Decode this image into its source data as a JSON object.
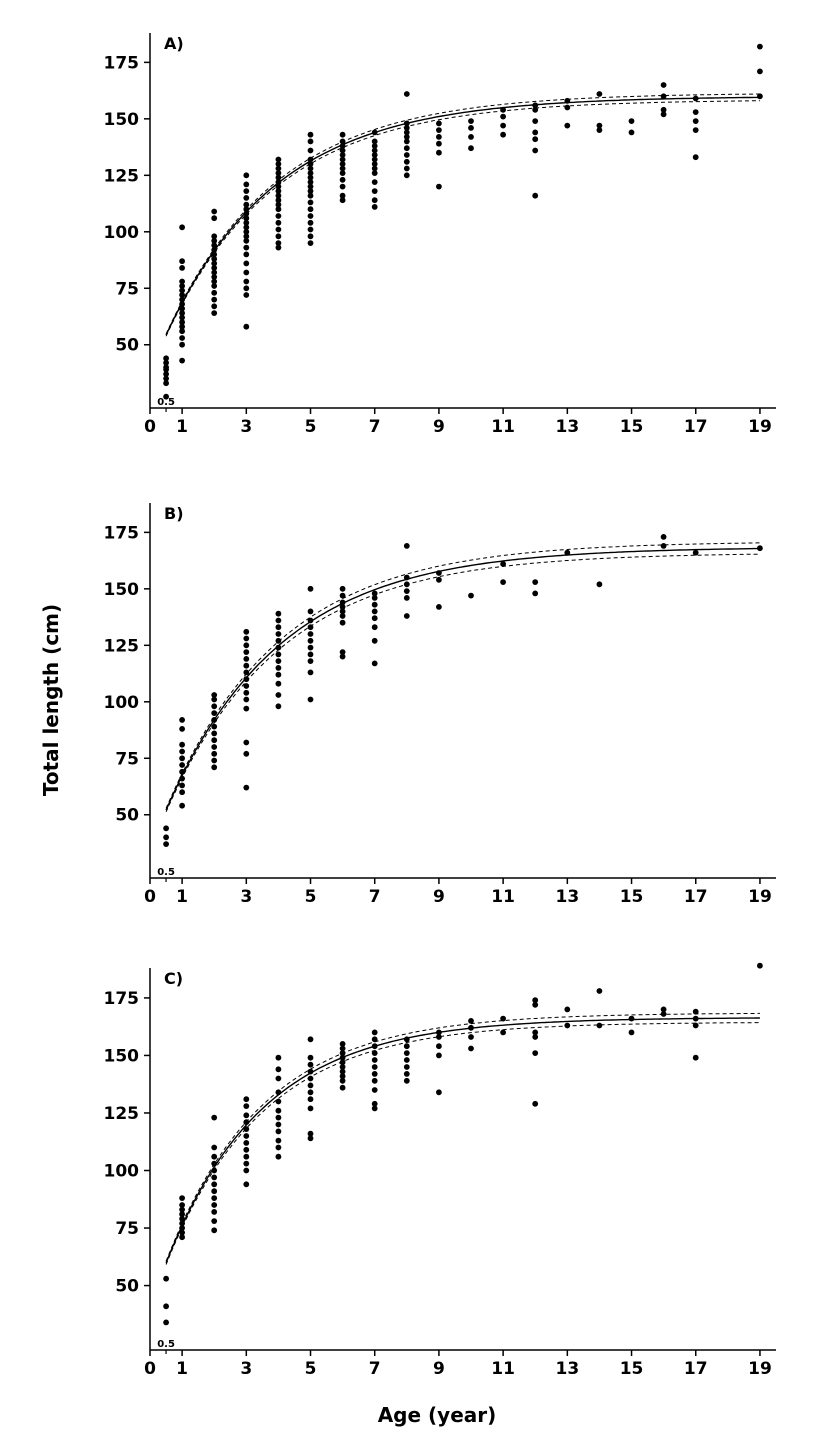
{
  "figure": {
    "ylabel": "Total length (cm)",
    "xlabel": "Age (year)"
  },
  "chart_data": [
    {
      "type": "scatter",
      "panel_label": "A)",
      "xlim": [
        0,
        19.5
      ],
      "ylim": [
        22,
        188
      ],
      "x_ticks": [
        0,
        1,
        3,
        5,
        7,
        9,
        11,
        13,
        15,
        17,
        19
      ],
      "x_minor_tick": 0.5,
      "x_minor_tick_label": "0.5",
      "y_ticks": [
        50,
        75,
        100,
        125,
        150,
        175
      ],
      "grid": false,
      "points": [
        {
          "x": 0.5,
          "y": [
            27,
            33,
            35,
            37,
            39,
            40,
            42,
            44
          ]
        },
        {
          "x": 1,
          "y": [
            43,
            50,
            53,
            56,
            58,
            60,
            62,
            64,
            66,
            68,
            70,
            72,
            74,
            76,
            78,
            84,
            87,
            102
          ]
        },
        {
          "x": 2,
          "y": [
            64,
            67,
            70,
            73,
            76,
            78,
            80,
            82,
            84,
            86,
            88,
            90,
            92,
            94,
            96,
            98,
            106,
            109
          ]
        },
        {
          "x": 3,
          "y": [
            58,
            72,
            75,
            78,
            82,
            86,
            90,
            93,
            96,
            98,
            100,
            102,
            104,
            106,
            108,
            110,
            112,
            115,
            118,
            121,
            125
          ]
        },
        {
          "x": 4,
          "y": [
            93,
            95,
            98,
            101,
            104,
            107,
            110,
            112,
            114,
            116,
            118,
            120,
            122,
            124,
            126,
            128,
            130,
            132
          ]
        },
        {
          "x": 5,
          "y": [
            95,
            98,
            101,
            104,
            107,
            110,
            113,
            116,
            118,
            120,
            122,
            124,
            126,
            128,
            130,
            132,
            136,
            140,
            143
          ]
        },
        {
          "x": 6,
          "y": [
            114,
            116,
            120,
            123,
            126,
            128,
            130,
            132,
            134,
            136,
            138,
            140,
            143
          ]
        },
        {
          "x": 7,
          "y": [
            111,
            114,
            118,
            122,
            126,
            128,
            130,
            132,
            134,
            136,
            138,
            140,
            144
          ]
        },
        {
          "x": 8,
          "y": [
            125,
            128,
            131,
            134,
            137,
            140,
            142,
            144,
            146,
            148,
            161
          ]
        },
        {
          "x": 9,
          "y": [
            120,
            135,
            139,
            142,
            145,
            148
          ]
        },
        {
          "x": 10,
          "y": [
            137,
            142,
            146,
            149
          ]
        },
        {
          "x": 11,
          "y": [
            143,
            147,
            151,
            154
          ]
        },
        {
          "x": 12,
          "y": [
            116,
            136,
            141,
            144,
            149,
            154,
            156
          ]
        },
        {
          "x": 13,
          "y": [
            147,
            155,
            158
          ]
        },
        {
          "x": 14,
          "y": [
            145,
            147,
            161
          ]
        },
        {
          "x": 15,
          "y": [
            144,
            149
          ]
        },
        {
          "x": 16,
          "y": [
            152,
            154,
            160,
            165
          ]
        },
        {
          "x": 17,
          "y": [
            133,
            145,
            149,
            153,
            159
          ]
        },
        {
          "x": 19,
          "y": [
            160,
            171,
            182
          ]
        }
      ],
      "curve": {
        "Linf": 160,
        "K": 0.29,
        "t0": -0.93
      },
      "ci_offset": 1.5
    },
    {
      "type": "scatter",
      "panel_label": "B)",
      "xlim": [
        0,
        19.5
      ],
      "ylim": [
        22,
        188
      ],
      "x_ticks": [
        0,
        1,
        3,
        5,
        7,
        9,
        11,
        13,
        15,
        17,
        19
      ],
      "x_minor_tick": 0.5,
      "x_minor_tick_label": "0.5",
      "y_ticks": [
        50,
        75,
        100,
        125,
        150,
        175
      ],
      "grid": false,
      "points": [
        {
          "x": 0.5,
          "y": [
            37,
            40,
            44
          ]
        },
        {
          "x": 1,
          "y": [
            54,
            60,
            63,
            66,
            69,
            72,
            75,
            78,
            81,
            88,
            92
          ]
        },
        {
          "x": 2,
          "y": [
            71,
            74,
            77,
            80,
            83,
            86,
            89,
            92,
            95,
            98,
            101,
            103
          ]
        },
        {
          "x": 3,
          "y": [
            62,
            77,
            82,
            97,
            101,
            104,
            107,
            110,
            113,
            116,
            119,
            122,
            125,
            128,
            131
          ]
        },
        {
          "x": 4,
          "y": [
            98,
            103,
            108,
            112,
            115,
            118,
            121,
            124,
            127,
            130,
            133,
            136,
            139
          ]
        },
        {
          "x": 5,
          "y": [
            101,
            113,
            118,
            121,
            124,
            127,
            130,
            133,
            136,
            140,
            150
          ]
        },
        {
          "x": 6,
          "y": [
            120,
            122,
            135,
            138,
            140,
            142,
            144,
            147,
            150
          ]
        },
        {
          "x": 7,
          "y": [
            117,
            127,
            133,
            137,
            140,
            143,
            146,
            148
          ]
        },
        {
          "x": 8,
          "y": [
            138,
            146,
            149,
            152,
            155,
            169
          ]
        },
        {
          "x": 9,
          "y": [
            142,
            154,
            157
          ]
        },
        {
          "x": 10,
          "y": [
            147
          ]
        },
        {
          "x": 11,
          "y": [
            153,
            161
          ]
        },
        {
          "x": 12,
          "y": [
            148,
            153
          ]
        },
        {
          "x": 13,
          "y": [
            166
          ]
        },
        {
          "x": 14,
          "y": [
            152
          ]
        },
        {
          "x": 16,
          "y": [
            169,
            173
          ]
        },
        {
          "x": 17,
          "y": [
            166
          ]
        },
        {
          "x": 19,
          "y": [
            168
          ]
        }
      ],
      "curve": {
        "Linf": 168.5,
        "K": 0.28,
        "t0": -0.82
      },
      "ci_offset": 2.5
    },
    {
      "type": "scatter",
      "panel_label": "C)",
      "xlim": [
        0,
        19.5
      ],
      "ylim": [
        22,
        188
      ],
      "x_ticks": [
        0,
        1,
        3,
        5,
        7,
        9,
        11,
        13,
        15,
        17,
        19
      ],
      "x_minor_tick": 0.5,
      "x_minor_tick_label": "0.5",
      "y_ticks": [
        50,
        75,
        100,
        125,
        150,
        175
      ],
      "grid": false,
      "points": [
        {
          "x": 0.5,
          "y": [
            34,
            41,
            53
          ]
        },
        {
          "x": 1,
          "y": [
            71,
            73,
            75,
            77,
            79,
            81,
            83,
            85,
            88
          ]
        },
        {
          "x": 2,
          "y": [
            74,
            78,
            82,
            85,
            88,
            91,
            94,
            97,
            100,
            103,
            106,
            110,
            123
          ]
        },
        {
          "x": 3,
          "y": [
            94,
            100,
            103,
            106,
            109,
            112,
            115,
            118,
            121,
            124,
            128,
            131
          ]
        },
        {
          "x": 4,
          "y": [
            106,
            110,
            113,
            117,
            120,
            123,
            126,
            130,
            134,
            140,
            144,
            149
          ]
        },
        {
          "x": 5,
          "y": [
            114,
            116,
            127,
            131,
            134,
            137,
            140,
            143,
            146,
            149,
            157
          ]
        },
        {
          "x": 6,
          "y": [
            136,
            139,
            141,
            143,
            145,
            147,
            149,
            151,
            153,
            155
          ]
        },
        {
          "x": 7,
          "y": [
            127,
            129,
            135,
            139,
            142,
            145,
            148,
            151,
            154,
            157,
            160
          ]
        },
        {
          "x": 8,
          "y": [
            139,
            142,
            145,
            148,
            151,
            154,
            157
          ]
        },
        {
          "x": 9,
          "y": [
            134,
            150,
            154,
            158,
            160
          ]
        },
        {
          "x": 10,
          "y": [
            153,
            158,
            162,
            165
          ]
        },
        {
          "x": 11,
          "y": [
            160,
            166
          ]
        },
        {
          "x": 12,
          "y": [
            129,
            151,
            158,
            160,
            172,
            174
          ]
        },
        {
          "x": 13,
          "y": [
            163,
            170
          ]
        },
        {
          "x": 14,
          "y": [
            163,
            178
          ]
        },
        {
          "x": 15,
          "y": [
            160,
            166
          ]
        },
        {
          "x": 16,
          "y": [
            168,
            170
          ]
        },
        {
          "x": 17,
          "y": [
            149,
            163,
            166,
            169
          ]
        },
        {
          "x": 19,
          "y": [
            189
          ]
        }
      ],
      "curve": {
        "Linf": 166.5,
        "K": 0.33,
        "t0": -0.85
      },
      "ci_offset": 2
    }
  ]
}
